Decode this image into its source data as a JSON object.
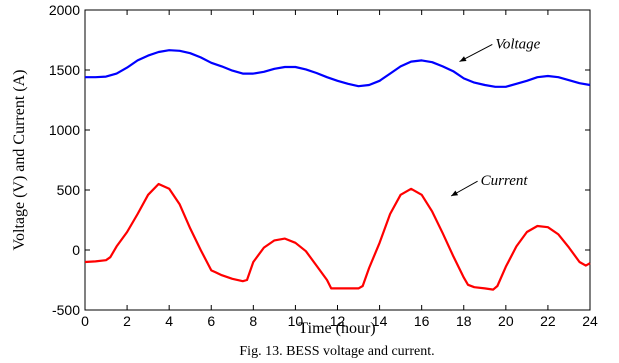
{
  "chart_data": {
    "type": "line",
    "xlabel": "Time (hour)",
    "ylabel": "Voltage (V) and Current (A)",
    "xlim": [
      0,
      24
    ],
    "ylim": [
      -500,
      2000
    ],
    "xticks": [
      "0",
      "2",
      "4",
      "6",
      "8",
      "10",
      "12",
      "14",
      "16",
      "18",
      "20",
      "22",
      "24"
    ],
    "yticks": [
      "-500",
      "0",
      "500",
      "1000",
      "1500",
      "2000"
    ],
    "grid": false,
    "caption": "Fig. 13. BESS voltage and current.",
    "annotations": [
      {
        "text": "Voltage",
        "target_x": 17.8,
        "target_y": 1570,
        "label_x": 19.5,
        "label_y": 1680
      },
      {
        "text": "Current",
        "target_x": 17.4,
        "target_y": 450,
        "label_x": 18.8,
        "label_y": 540
      }
    ],
    "series": [
      {
        "name": "Voltage",
        "color": "#0000ff",
        "x": [
          0,
          0.5,
          1,
          1.5,
          2,
          2.5,
          3,
          3.5,
          4,
          4.5,
          5,
          5.5,
          6,
          6.5,
          7,
          7.5,
          8,
          8.5,
          9,
          9.5,
          10,
          10.5,
          11,
          11.5,
          12,
          12.5,
          13,
          13.5,
          14,
          14.5,
          15,
          15.5,
          16,
          16.5,
          17,
          17.5,
          18,
          18.5,
          19,
          19.5,
          20,
          20.5,
          21,
          21.5,
          22,
          22.5,
          23,
          23.5,
          24
        ],
        "y": [
          1440,
          1440,
          1445,
          1470,
          1520,
          1580,
          1620,
          1650,
          1665,
          1660,
          1640,
          1605,
          1560,
          1530,
          1495,
          1470,
          1470,
          1485,
          1510,
          1525,
          1525,
          1505,
          1475,
          1440,
          1410,
          1385,
          1365,
          1375,
          1410,
          1470,
          1530,
          1570,
          1580,
          1565,
          1530,
          1490,
          1430,
          1395,
          1375,
          1360,
          1360,
          1385,
          1410,
          1440,
          1450,
          1440,
          1415,
          1390,
          1375
        ]
      },
      {
        "name": "Current",
        "color": "#ff0000",
        "x": [
          0,
          0.5,
          1,
          1.2,
          1.5,
          2,
          2.5,
          3,
          3.5,
          4,
          4.5,
          5,
          5.5,
          6,
          6.2,
          6.5,
          7,
          7.5,
          7.7,
          8,
          8.5,
          9,
          9.5,
          10,
          10.5,
          11,
          11.5,
          11.7,
          12,
          12.5,
          13,
          13.2,
          13.5,
          14,
          14.5,
          15,
          15.5,
          16,
          16.5,
          17,
          17.5,
          18,
          18.2,
          18.5,
          19,
          19.4,
          19.6,
          20,
          20.5,
          21,
          21.5,
          22,
          22.5,
          23,
          23.5,
          23.8,
          24
        ],
        "y": [
          -100,
          -95,
          -85,
          -60,
          30,
          150,
          300,
          460,
          550,
          510,
          380,
          180,
          0,
          -170,
          -185,
          -210,
          -240,
          -260,
          -250,
          -100,
          20,
          80,
          95,
          60,
          -10,
          -130,
          -250,
          -320,
          -320,
          -320,
          -320,
          -300,
          -150,
          60,
          300,
          460,
          510,
          460,
          320,
          140,
          -50,
          -230,
          -290,
          -310,
          -320,
          -330,
          -300,
          -140,
          30,
          150,
          200,
          190,
          130,
          20,
          -100,
          -130,
          -110
        ]
      }
    ]
  }
}
